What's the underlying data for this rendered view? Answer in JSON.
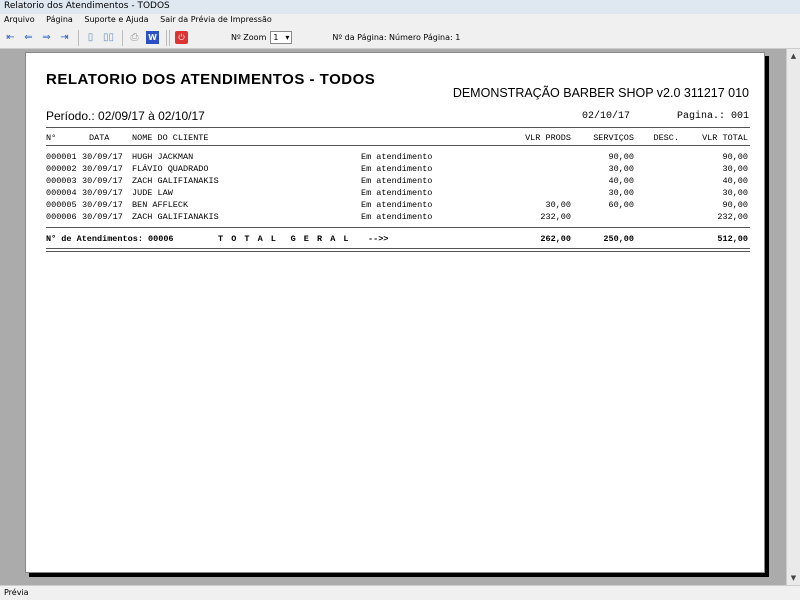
{
  "window": {
    "title": "Relatorio dos Atendimentos - TODOS"
  },
  "menu": [
    "Arquivo",
    "Página",
    "Suporte e Ajuda",
    "Sair da Prévia de Impressão"
  ],
  "toolbar": {
    "zoom_label": "Nº Zoom",
    "zoom_value": "1",
    "page_label": "Nº da Página: Número Página: 1"
  },
  "status": "Prévia",
  "report": {
    "title": "RELATORIO DOS ATENDIMENTOS - TODOS",
    "company": "DEMONSTRAÇÃO BARBER SHOP v2.0 311217 010",
    "period": "Período.: 02/09/17 à 02/10/17",
    "date": "02/10/17",
    "page": "Pagina.: 001",
    "headers": {
      "num": "N°",
      "date": "DATA",
      "name": "NOME DO CLIENTE",
      "prods": "VLR PRODS",
      "serv": "SERVIÇOS",
      "desc": "DESC.",
      "total": "VLR TOTAL"
    },
    "rows": [
      {
        "num": "000001",
        "date": "30/09/17",
        "name": "HUGH JACKMAN",
        "status": "Em atendimento",
        "prods": "",
        "serv": "90,00",
        "desc": "",
        "total": "90,00"
      },
      {
        "num": "000002",
        "date": "30/09/17",
        "name": "FLÁVIO QUADRADO",
        "status": "Em atendimento",
        "prods": "",
        "serv": "30,00",
        "desc": "",
        "total": "30,00"
      },
      {
        "num": "000003",
        "date": "30/09/17",
        "name": "ZACH GALIFIANAKIS",
        "status": "Em atendimento",
        "prods": "",
        "serv": "40,00",
        "desc": "",
        "total": "40,00"
      },
      {
        "num": "000004",
        "date": "30/09/17",
        "name": "JUDE LAW",
        "status": "Em atendimento",
        "prods": "",
        "serv": "30,00",
        "desc": "",
        "total": "30,00"
      },
      {
        "num": "000005",
        "date": "30/09/17",
        "name": "BEN AFFLECK",
        "status": "Em atendimento",
        "prods": "30,00",
        "serv": "60,00",
        "desc": "",
        "total": "90,00"
      },
      {
        "num": "000006",
        "date": "30/09/17",
        "name": "ZACH GALIFIANAKIS",
        "status": "Em atendimento",
        "prods": "232,00",
        "serv": "",
        "desc": "",
        "total": "232,00"
      }
    ],
    "footer": {
      "count": "N° de Atendimentos: 00006",
      "total_label": "T O T A L  G E R A L",
      "arrow": "-->>",
      "prods": "262,00",
      "serv": "250,00",
      "total": "512,00"
    }
  }
}
